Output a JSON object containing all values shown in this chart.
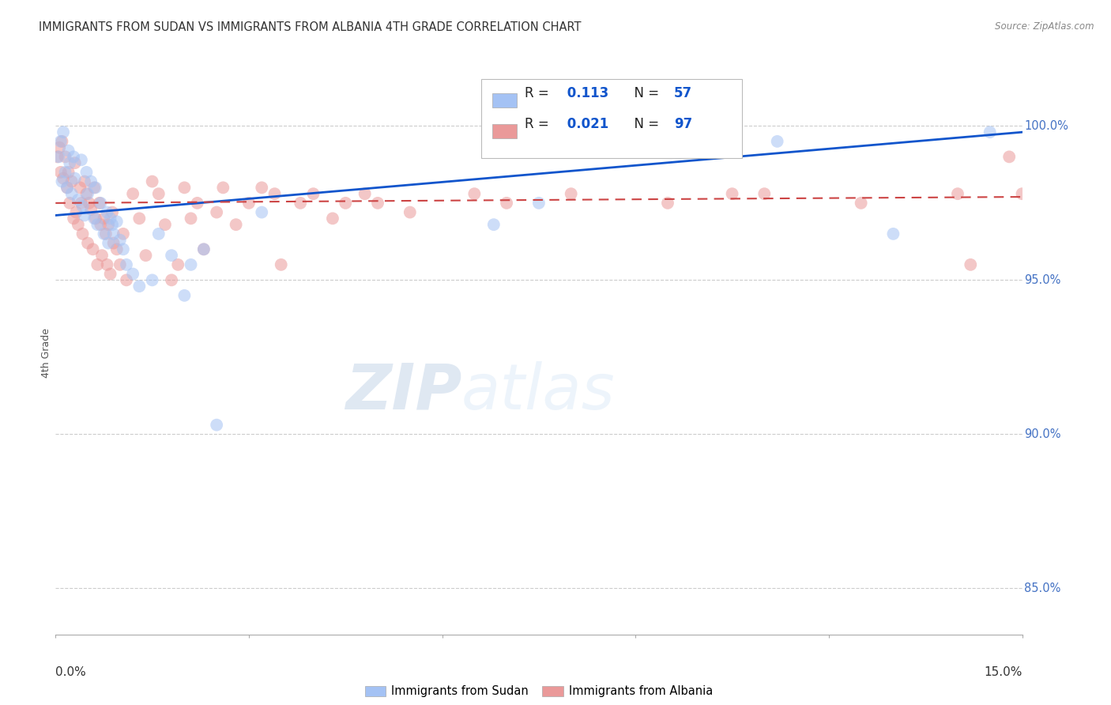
{
  "title": "IMMIGRANTS FROM SUDAN VS IMMIGRANTS FROM ALBANIA 4TH GRADE CORRELATION CHART",
  "source": "Source: ZipAtlas.com",
  "ylabel": "4th Grade",
  "yticks": [
    85.0,
    90.0,
    95.0,
    100.0
  ],
  "ytick_labels": [
    "85.0%",
    "90.0%",
    "95.0%",
    "100.0%"
  ],
  "xlim": [
    0.0,
    15.0
  ],
  "ylim": [
    83.5,
    101.8
  ],
  "sudan_color": "#a4c2f4",
  "albania_color": "#ea9999",
  "sudan_line_color": "#1155cc",
  "albania_line_color": "#cc4444",
  "watermark_zip": "ZIP",
  "watermark_atlas": "atlas",
  "legend_box_color": "#cccccc",
  "sudan_x": [
    0.05,
    0.08,
    0.1,
    0.12,
    0.15,
    0.18,
    0.2,
    0.22,
    0.25,
    0.28,
    0.3,
    0.35,
    0.4,
    0.42,
    0.45,
    0.48,
    0.5,
    0.55,
    0.6,
    0.62,
    0.65,
    0.7,
    0.75,
    0.8,
    0.82,
    0.85,
    0.88,
    0.9,
    0.95,
    1.0,
    1.05,
    1.1,
    1.2,
    1.3,
    1.5,
    1.6,
    1.8,
    2.0,
    2.1,
    2.3,
    2.5,
    3.2,
    6.8,
    7.5,
    11.2,
    13.0,
    14.5
  ],
  "sudan_y": [
    99.0,
    99.5,
    98.2,
    99.8,
    98.5,
    98.0,
    99.2,
    98.8,
    97.8,
    99.0,
    98.3,
    97.6,
    98.9,
    97.4,
    97.1,
    98.5,
    97.8,
    98.2,
    97.0,
    98.0,
    96.8,
    97.5,
    96.5,
    97.2,
    96.2,
    97.0,
    96.8,
    96.5,
    96.9,
    96.3,
    96.0,
    95.5,
    95.2,
    94.8,
    95.0,
    96.5,
    95.8,
    94.5,
    95.5,
    96.0,
    90.3,
    97.2,
    96.8,
    97.5,
    99.5,
    96.5,
    99.8
  ],
  "albania_x": [
    0.03,
    0.06,
    0.08,
    0.1,
    0.12,
    0.15,
    0.18,
    0.2,
    0.22,
    0.25,
    0.28,
    0.3,
    0.32,
    0.35,
    0.38,
    0.4,
    0.42,
    0.45,
    0.48,
    0.5,
    0.52,
    0.55,
    0.58,
    0.6,
    0.62,
    0.65,
    0.68,
    0.7,
    0.72,
    0.75,
    0.78,
    0.8,
    0.82,
    0.85,
    0.88,
    0.9,
    0.95,
    1.0,
    1.05,
    1.1,
    1.2,
    1.3,
    1.4,
    1.5,
    1.6,
    1.7,
    1.8,
    1.9,
    2.0,
    2.1,
    2.2,
    2.3,
    2.5,
    2.6,
    2.8,
    3.0,
    3.2,
    3.4,
    3.5,
    3.8,
    4.0,
    4.3,
    4.5,
    4.8,
    5.0,
    5.5,
    6.5,
    7.0,
    8.0,
    9.5,
    10.5,
    11.0,
    12.5,
    14.0,
    14.2,
    14.8,
    15.0
  ],
  "albania_y": [
    99.0,
    99.3,
    98.5,
    99.5,
    98.3,
    99.0,
    98.0,
    98.5,
    97.5,
    98.2,
    97.0,
    98.8,
    97.2,
    96.8,
    98.0,
    97.5,
    96.5,
    98.2,
    97.8,
    96.2,
    97.5,
    97.3,
    96.0,
    98.0,
    97.0,
    95.5,
    97.5,
    96.8,
    95.8,
    97.0,
    96.5,
    95.5,
    96.8,
    95.2,
    97.2,
    96.2,
    96.0,
    95.5,
    96.5,
    95.0,
    97.8,
    97.0,
    95.8,
    98.2,
    97.8,
    96.8,
    95.0,
    95.5,
    98.0,
    97.0,
    97.5,
    96.0,
    97.2,
    98.0,
    96.8,
    97.5,
    98.0,
    97.8,
    95.5,
    97.5,
    97.8,
    97.0,
    97.5,
    97.8,
    97.5,
    97.2,
    97.8,
    97.5,
    97.8,
    97.5,
    97.8,
    97.8,
    97.5,
    97.8,
    95.5,
    99.0,
    97.8
  ],
  "sudan_line_y0": 97.1,
  "sudan_line_y1": 99.8,
  "albania_line_y0": 97.5,
  "albania_line_y1": 97.7,
  "xtick_positions": [
    0,
    3,
    6,
    9,
    12,
    15
  ],
  "marker_size": 130
}
